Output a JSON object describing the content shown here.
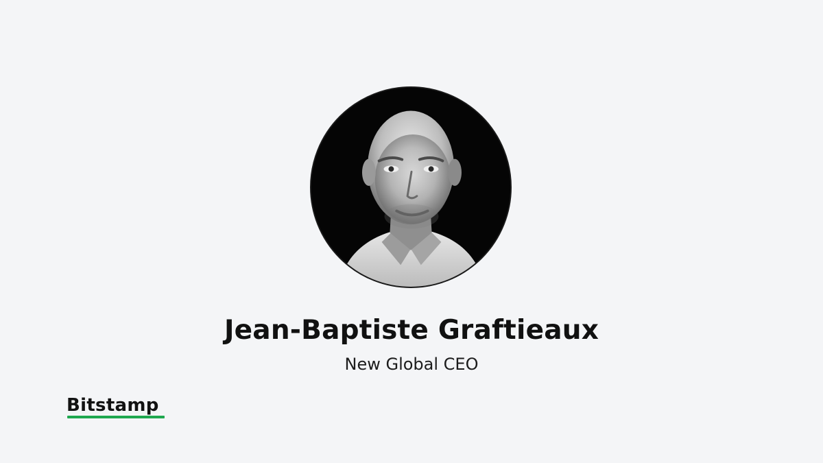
{
  "announcement": {
    "person_name": "Jean-Baptiste Graftieaux",
    "person_role": "New Global CEO",
    "portrait_style": "black-and-white circular headshot"
  },
  "brand": {
    "logo_text": "Bitstamp",
    "accent_color": "#1fa84f"
  },
  "colors": {
    "background": "#f4f5f7",
    "text": "#111111",
    "portrait_background": "#000000"
  }
}
